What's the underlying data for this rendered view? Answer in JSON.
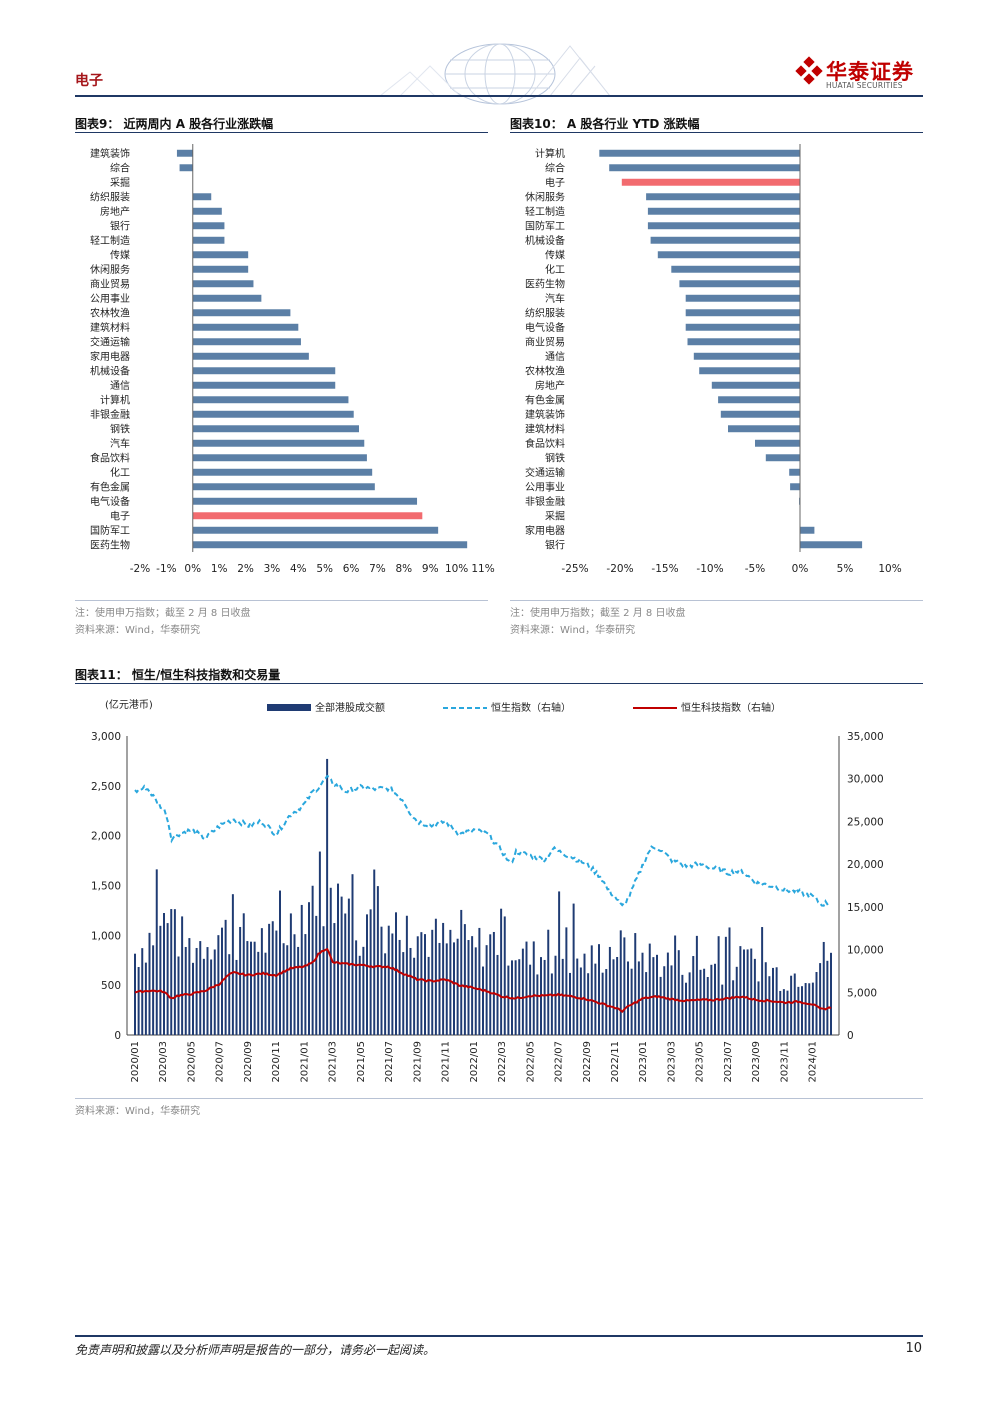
{
  "header": {
    "section": "电子",
    "logo_cn": "华泰证券",
    "logo_en": "HUATAI SECURITIES"
  },
  "colors": {
    "navy": "#1f3864",
    "bar_blue": "#5b7fa6",
    "highlight_red": "#f26b6f",
    "hsi_dash": "#2aa7dd",
    "hstech_red": "#c00000",
    "turnover_bar": "#1f3b73"
  },
  "fig9": {
    "title": "图表9：  近两周内 A 股各行业涨跌幅",
    "note": "注：使用申万指数；截至 2 月 8 日收盘",
    "source": "资料来源：Wind，华泰研究"
  },
  "fig10": {
    "title": "图表10：  A 股各行业 YTD 涨跌幅",
    "note": "注：使用申万指数；截至 2 月 8 日收盘",
    "source": "资料来源：Wind，华泰研究"
  },
  "fig11": {
    "title": "图表11：  恒生/恒生科技指数和交易量",
    "source": "资料来源：Wind，华泰研究"
  },
  "chart_data": [
    {
      "id": "fig9",
      "type": "bar",
      "orientation": "horizontal",
      "categories": [
        "建筑装饰",
        "综合",
        "采掘",
        "纺织服装",
        "房地产",
        "银行",
        "轻工制造",
        "传媒",
        "休闲服务",
        "商业贸易",
        "公用事业",
        "农林牧渔",
        "建筑材料",
        "交通运输",
        "家用电器",
        "机械设备",
        "通信",
        "计算机",
        "非银金融",
        "钢铁",
        "汽车",
        "食品饮料",
        "化工",
        "有色金属",
        "电气设备",
        "电子",
        "国防军工",
        "医药生物"
      ],
      "values": [
        -0.6,
        -0.5,
        0.0,
        0.7,
        1.1,
        1.2,
        1.2,
        2.1,
        2.1,
        2.3,
        2.6,
        3.7,
        4.0,
        4.1,
        4.4,
        5.4,
        5.4,
        5.9,
        6.1,
        6.3,
        6.5,
        6.6,
        6.8,
        6.9,
        8.5,
        8.7,
        9.3,
        10.4
      ],
      "highlight": "电子",
      "xlim": [
        -2,
        11
      ],
      "x_ticks": [
        "-2%",
        "-1%",
        "0%",
        "1%",
        "2%",
        "3%",
        "4%",
        "5%",
        "6%",
        "7%",
        "8%",
        "9%",
        "10%",
        "11%"
      ],
      "unit": "%"
    },
    {
      "id": "fig10",
      "type": "bar",
      "orientation": "horizontal",
      "categories": [
        "计算机",
        "综合",
        "电子",
        "休闲服务",
        "轻工制造",
        "国防军工",
        "机械设备",
        "传媒",
        "化工",
        "医药生物",
        "汽车",
        "纺织服装",
        "电气设备",
        "商业贸易",
        "通信",
        "农林牧渔",
        "房地产",
        "有色金属",
        "建筑装饰",
        "建筑材料",
        "食品饮料",
        "钢铁",
        "交通运输",
        "公用事业",
        "非银金融",
        "采掘",
        "家用电器",
        "银行"
      ],
      "values": [
        -22.3,
        -21.2,
        -19.8,
        -17.1,
        -16.9,
        -16.9,
        -16.6,
        -15.8,
        -14.3,
        -13.4,
        -12.7,
        -12.7,
        -12.7,
        -12.5,
        -11.8,
        -11.2,
        -9.8,
        -9.1,
        -8.8,
        -8.0,
        -5.0,
        -3.8,
        -1.2,
        -1.1,
        -0.1,
        0.0,
        1.6,
        6.9
      ],
      "highlight": "电子",
      "xlim": [
        -25,
        10
      ],
      "x_ticks": [
        "-25%",
        "-20%",
        "-15%",
        "-10%",
        "-5%",
        "0%",
        "5%",
        "10%"
      ],
      "unit": "%"
    },
    {
      "id": "fig11",
      "type": "bar+line",
      "ylabel": "(亿元港币)",
      "left_ylim": [
        0,
        3000
      ],
      "left_ticks": [
        "0",
        "500",
        "1,000",
        "1,500",
        "2,000",
        "2,500",
        "3,000"
      ],
      "right_ylim": [
        0,
        35000
      ],
      "right_ticks": [
        "0",
        "5,000",
        "10,000",
        "15,000",
        "20,000",
        "25,000",
        "30,000",
        "35,000"
      ],
      "x_ticks": [
        "2020/01",
        "2020/03",
        "2020/05",
        "2020/07",
        "2020/09",
        "2020/11",
        "2021/01",
        "2021/03",
        "2021/05",
        "2021/07",
        "2021/09",
        "2021/11",
        "2022/01",
        "2022/03",
        "2022/05",
        "2022/07",
        "2022/09",
        "2022/11",
        "2023/01",
        "2023/03",
        "2023/05",
        "2023/07",
        "2023/09",
        "2023/11",
        "2024/01"
      ],
      "legend": [
        "全部港股成交额",
        "恒生指数（右轴）",
        "恒生科技指数（右轴）"
      ],
      "legend_position": "top",
      "series_summary": {
        "turnover_peak": 2770,
        "hsi_start": 28500,
        "hsi_peak": 30200,
        "hsi_trough": 14800,
        "hsi_end": 15600,
        "hstech_start": 5000,
        "hstech_peak": 10200,
        "hstech_trough": 2800,
        "hstech_end": 3200
      }
    }
  ],
  "footer": {
    "disclaimer": "免责声明和披露以及分析师声明是报告的一部分，请务必一起阅读。",
    "page": "10"
  }
}
